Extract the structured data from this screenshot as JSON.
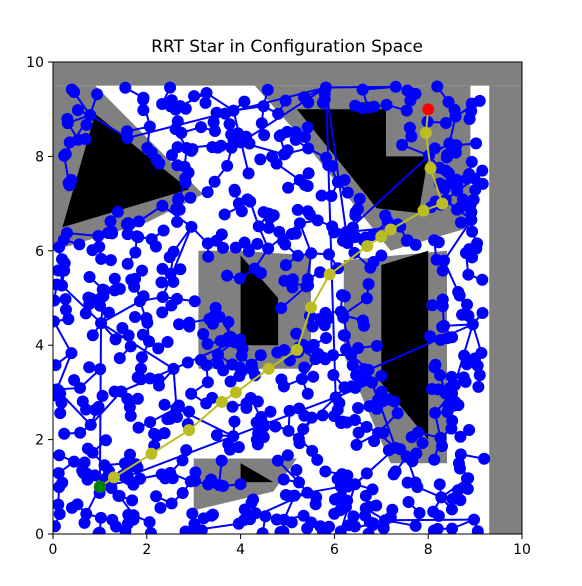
{
  "chart_data": {
    "type": "scatter",
    "title": "RRT Star in Configuration Space",
    "xlabel": "",
    "ylabel": "",
    "xlim": [
      0,
      10
    ],
    "ylim": [
      0,
      10
    ],
    "xticks": [
      0,
      2,
      4,
      6,
      8,
      10
    ],
    "yticks": [
      0,
      2,
      4,
      6,
      8,
      10
    ],
    "grid": false,
    "legend": "none",
    "colors": {
      "obstacle": "#000000",
      "inflated_obstacle": "#808080",
      "tree": "#0000ff",
      "path": "#bcbd22",
      "start": "#008000",
      "goal": "#ff0000",
      "free_space": "#ffffff"
    },
    "start": {
      "x": 1.0,
      "y": 1.0
    },
    "goal": {
      "x": 8.0,
      "y": 9.0
    },
    "path": [
      {
        "x": 1.0,
        "y": 1.0
      },
      {
        "x": 1.3,
        "y": 1.2
      },
      {
        "x": 2.1,
        "y": 1.7
      },
      {
        "x": 2.9,
        "y": 2.2
      },
      {
        "x": 3.6,
        "y": 2.8
      },
      {
        "x": 3.9,
        "y": 3.0
      },
      {
        "x": 4.6,
        "y": 3.5
      },
      {
        "x": 5.2,
        "y": 3.9
      },
      {
        "x": 5.5,
        "y": 4.8
      },
      {
        "x": 5.9,
        "y": 5.5
      },
      {
        "x": 6.7,
        "y": 6.1
      },
      {
        "x": 7.0,
        "y": 6.3
      },
      {
        "x": 7.2,
        "y": 6.45
      },
      {
        "x": 7.9,
        "y": 6.85
      },
      {
        "x": 8.3,
        "y": 7.0
      },
      {
        "x": 8.05,
        "y": 7.75
      },
      {
        "x": 7.95,
        "y": 8.5
      },
      {
        "x": 8.0,
        "y": 9.0
      }
    ],
    "obstacles": [
      {
        "name": "upper-left-triangle",
        "inflated": [
          [
            0,
            6
          ],
          [
            0,
            9.5
          ],
          [
            0.9,
            9.5
          ],
          [
            3.2,
            7.2
          ],
          [
            2.0,
            6.6
          ]
        ],
        "core": [
          [
            0.2,
            6.5
          ],
          [
            0.9,
            8.9
          ],
          [
            2.9,
            7.3
          ]
        ]
      },
      {
        "name": "upper-middle-shape",
        "inflated": [
          [
            4.3,
            9.5
          ],
          [
            8.9,
            9.5
          ],
          [
            8.9,
            6.5
          ],
          [
            7.2,
            6.0
          ],
          [
            6.8,
            6.5
          ],
          [
            5.2,
            8.5
          ]
        ],
        "core": [
          [
            5.2,
            9.0
          ],
          [
            7.1,
            9.0
          ],
          [
            7.1,
            8.0
          ],
          [
            8.0,
            8.0
          ],
          [
            7.8,
            6.8
          ],
          [
            6.9,
            6.9
          ],
          [
            6.5,
            7.4
          ]
        ]
      },
      {
        "name": "center-left-block",
        "inflated": [
          [
            3.1,
            6.0
          ],
          [
            3.1,
            3.5
          ],
          [
            5.5,
            3.5
          ],
          [
            5.5,
            5.9
          ],
          [
            4.0,
            6.0
          ]
        ],
        "core": [
          [
            4.0,
            5.9
          ],
          [
            4.0,
            4.0
          ],
          [
            4.8,
            4.0
          ],
          [
            4.8,
            5.0
          ]
        ]
      },
      {
        "name": "right-trapezoid",
        "inflated": [
          [
            6.2,
            5.8
          ],
          [
            8.4,
            6.0
          ],
          [
            8.4,
            1.5
          ],
          [
            7.2,
            1.5
          ],
          [
            6.2,
            3.8
          ]
        ],
        "core": [
          [
            7.0,
            5.7
          ],
          [
            8.0,
            6.0
          ],
          [
            8.0,
            2.0
          ],
          [
            7.0,
            3.2
          ]
        ]
      },
      {
        "name": "bottom-wedge",
        "inflated": [
          [
            3.0,
            1.6
          ],
          [
            5.2,
            1.6
          ],
          [
            4.7,
            0.9
          ],
          [
            3.0,
            0.5
          ]
        ],
        "core": [
          [
            4.0,
            1.5
          ],
          [
            4.7,
            1.1
          ],
          [
            4.0,
            1.1
          ]
        ]
      },
      {
        "name": "right-wall",
        "inflated": [
          [
            9.3,
            9.5
          ],
          [
            10,
            9.5
          ],
          [
            10,
            0
          ],
          [
            9.3,
            0
          ]
        ],
        "core": []
      },
      {
        "name": "top-wall",
        "inflated": [
          [
            0,
            9.5
          ],
          [
            10,
            9.5
          ],
          [
            10,
            10
          ],
          [
            0,
            10
          ]
        ],
        "core": []
      }
    ]
  }
}
